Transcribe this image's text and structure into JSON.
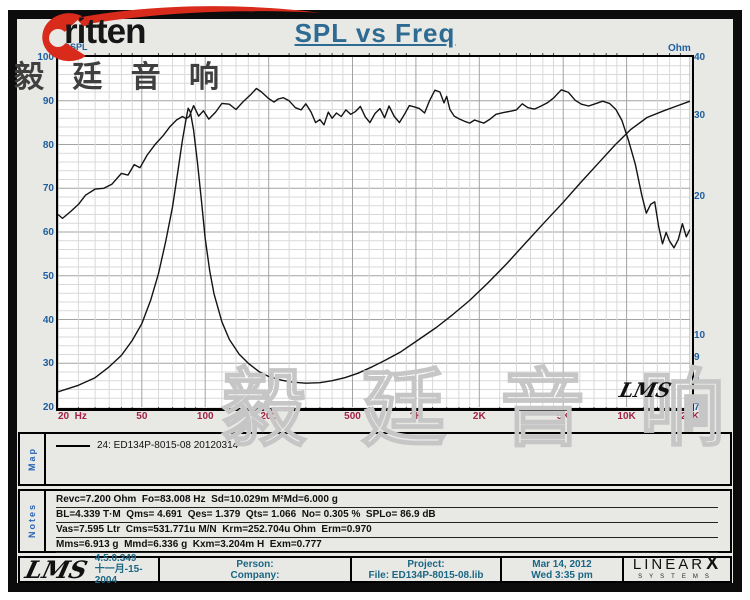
{
  "brand": {
    "logo_text": "ritten",
    "logo_color": "#d92b1c"
  },
  "title": "SPL vs Freq",
  "watermarks": {
    "top_left_cjk": "毅 廷 音 响",
    "bottom_cjk": "毅 廷 音 响",
    "lms_script": "LMS"
  },
  "map_panel": {
    "label": "Map",
    "legend": "24: ED134P-8015-08 20120314"
  },
  "notes_panel": {
    "label": "Notes",
    "lines": [
      "Revc=7.200 Ohm  Fo=83.008 Hz  Sd=10.029m M²Md=6.000 g",
      "BL=4.339 T·M  Qms= 4.691  Qes= 1.379  Qts= 1.066  No= 0.305 %  SPLo= 86.9 dB",
      "Vas=7.595 Ltr  Cms=531.771u M/N  Krm=252.704u Ohm  Erm=0.970",
      "Mms=6.913 g  Mmd=6.336 g  Kxm=3.204m H  Exm=0.777"
    ]
  },
  "footer": {
    "lms_logo": "LMS",
    "version": "4.5.0.349",
    "date_cn": "十一月-15-2004",
    "person_label": "Person:",
    "company_label": "Company:",
    "project_label": "Project:",
    "file_label": "File: ED134P-8015-08.lib",
    "date": "Mar 14, 2012",
    "time": "Wed  3:35 pm",
    "linearx_main": "LINEAR",
    "linearx_x": "X",
    "linearx_sub": "SYSTEMS"
  },
  "colors": {
    "title": "#2d6b93",
    "axis_left_labels": "#1f5f9e",
    "axis_bottom_labels": "#a32342",
    "panel_label_blue": "#2a64b4",
    "footer_text": "#1b6784",
    "curve": "#141414",
    "grid_minor": "#d9d9d9",
    "grid_major": "#a3a3a3",
    "logo_red": "#d92b1c",
    "page_gray": "#e8e8e5"
  },
  "chart_data": {
    "type": "line",
    "title": "SPL vs Freq",
    "x_axis": {
      "label": "Hz",
      "scale": "log",
      "min": 20,
      "max": 20000,
      "tick_labels": [
        "20  Hz",
        "50",
        "100",
        "200",
        "500",
        "1K",
        "2K",
        "5K",
        "10K",
        "20K"
      ],
      "tick_values": [
        20,
        50,
        100,
        200,
        500,
        1000,
        2000,
        5000,
        10000,
        20000
      ],
      "minor_gridlines": [
        25,
        30,
        35,
        40,
        45,
        60,
        70,
        80,
        90,
        120,
        140,
        160,
        180,
        250,
        300,
        350,
        400,
        450,
        600,
        700,
        800,
        900,
        1200,
        1400,
        1600,
        1800,
        2500,
        3000,
        3500,
        4000,
        4500,
        6000,
        7000,
        8000,
        9000,
        12000,
        14000,
        16000,
        18000
      ]
    },
    "y_left": {
      "label": "dBSPL",
      "scale": "linear",
      "min": 20,
      "max": 100,
      "major_step": 10,
      "minor_step": 2,
      "ticks": [
        100,
        90,
        80,
        70,
        60,
        50,
        40,
        30,
        20
      ]
    },
    "y_right": {
      "label": "Ohm",
      "scale": "log",
      "min": 7,
      "max": 40,
      "ticks": [
        40,
        30,
        20,
        10,
        9,
        8,
        7
      ]
    },
    "grid": true,
    "legend_position": "map-panel",
    "series": [
      {
        "name": "24: ED134P-8015-08 20120314 (SPL)",
        "axis": "left",
        "unit": "dBSPL",
        "points": [
          [
            20,
            64.0
          ],
          [
            21,
            63.1
          ],
          [
            23,
            64.7
          ],
          [
            25,
            66.3
          ],
          [
            27,
            68.4
          ],
          [
            30,
            69.8
          ],
          [
            33,
            70.0
          ],
          [
            36,
            70.9
          ],
          [
            40,
            73.4
          ],
          [
            43,
            73.0
          ],
          [
            46,
            75.4
          ],
          [
            49,
            74.7
          ],
          [
            53,
            77.6
          ],
          [
            58,
            80.1
          ],
          [
            63,
            82.0
          ],
          [
            68,
            84.1
          ],
          [
            73,
            85.6
          ],
          [
            78,
            86.4
          ],
          [
            81,
            85.9
          ],
          [
            84,
            86.4
          ],
          [
            88,
            88.9
          ],
          [
            93,
            86.5
          ],
          [
            98,
            87.7
          ],
          [
            104,
            85.8
          ],
          [
            112,
            87.4
          ],
          [
            120,
            89.4
          ],
          [
            130,
            89.2
          ],
          [
            140,
            88.0
          ],
          [
            152,
            89.9
          ],
          [
            165,
            91.5
          ],
          [
            175,
            92.8
          ],
          [
            185,
            92.0
          ],
          [
            200,
            90.5
          ],
          [
            212,
            89.7
          ],
          [
            222,
            90.4
          ],
          [
            235,
            90.7
          ],
          [
            250,
            90.0
          ],
          [
            268,
            88.4
          ],
          [
            285,
            87.9
          ],
          [
            300,
            89.3
          ],
          [
            318,
            87.4
          ],
          [
            334,
            85.0
          ],
          [
            350,
            85.7
          ],
          [
            366,
            84.5
          ],
          [
            384,
            87.4
          ],
          [
            400,
            86.0
          ],
          [
            420,
            87.2
          ],
          [
            442,
            86.4
          ],
          [
            465,
            87.9
          ],
          [
            490,
            86.9
          ],
          [
            515,
            87.5
          ],
          [
            545,
            88.7
          ],
          [
            575,
            86.3
          ],
          [
            605,
            85.0
          ],
          [
            640,
            87.1
          ],
          [
            675,
            88.2
          ],
          [
            710,
            86.1
          ],
          [
            745,
            88.8
          ],
          [
            790,
            86.4
          ],
          [
            835,
            85.0
          ],
          [
            880,
            86.8
          ],
          [
            930,
            88.9
          ],
          [
            985,
            88.6
          ],
          [
            1040,
            88.2
          ],
          [
            1100,
            87.2
          ],
          [
            1160,
            90.0
          ],
          [
            1230,
            92.4
          ],
          [
            1300,
            92.0
          ],
          [
            1360,
            89.5
          ],
          [
            1400,
            91.0
          ],
          [
            1450,
            88.0
          ],
          [
            1520,
            86.5
          ],
          [
            1600,
            85.9
          ],
          [
            1700,
            85.3
          ],
          [
            1800,
            84.9
          ],
          [
            1900,
            85.6
          ],
          [
            2000,
            85.2
          ],
          [
            2100,
            84.9
          ],
          [
            2250,
            85.8
          ],
          [
            2400,
            86.9
          ],
          [
            2600,
            87.3
          ],
          [
            2800,
            87.6
          ],
          [
            3000,
            87.9
          ],
          [
            3200,
            89.3
          ],
          [
            3400,
            88.4
          ],
          [
            3650,
            88.1
          ],
          [
            3900,
            88.7
          ],
          [
            4200,
            89.5
          ],
          [
            4500,
            90.6
          ],
          [
            4900,
            92.5
          ],
          [
            5300,
            91.9
          ],
          [
            5700,
            90.1
          ],
          [
            6100,
            89.2
          ],
          [
            6600,
            88.8
          ],
          [
            7100,
            89.3
          ],
          [
            7700,
            89.9
          ],
          [
            8300,
            89.4
          ],
          [
            8900,
            88.0
          ],
          [
            9500,
            85.5
          ],
          [
            10200,
            81.0
          ],
          [
            11000,
            75.5
          ],
          [
            11800,
            68.5
          ],
          [
            12400,
            64.3
          ],
          [
            13000,
            66.3
          ],
          [
            13600,
            66.9
          ],
          [
            14200,
            61.2
          ],
          [
            14800,
            57.3
          ],
          [
            15400,
            59.9
          ],
          [
            16000,
            57.9
          ],
          [
            16800,
            56.4
          ],
          [
            17600,
            58.3
          ],
          [
            18400,
            61.9
          ],
          [
            19200,
            58.9
          ],
          [
            20000,
            60.6
          ]
        ]
      },
      {
        "name": "Impedance",
        "axis": "right",
        "unit": "Ohm",
        "points": [
          [
            20,
            7.55
          ],
          [
            25,
            7.8
          ],
          [
            30,
            8.1
          ],
          [
            35,
            8.55
          ],
          [
            40,
            9.05
          ],
          [
            45,
            9.75
          ],
          [
            50,
            10.6
          ],
          [
            55,
            11.9
          ],
          [
            60,
            13.6
          ],
          [
            65,
            16.0
          ],
          [
            70,
            19.0
          ],
          [
            74,
            22.5
          ],
          [
            78,
            26.5
          ],
          [
            81,
            29.3
          ],
          [
            83,
            31.0
          ],
          [
            85,
            30.4
          ],
          [
            88,
            27.8
          ],
          [
            92,
            23.5
          ],
          [
            96,
            19.5
          ],
          [
            100,
            16.2
          ],
          [
            105,
            13.8
          ],
          [
            110,
            12.3
          ],
          [
            120,
            10.7
          ],
          [
            130,
            9.8
          ],
          [
            145,
            9.1
          ],
          [
            160,
            8.7
          ],
          [
            180,
            8.35
          ],
          [
            200,
            8.15
          ],
          [
            230,
            8.0
          ],
          [
            260,
            7.92
          ],
          [
            300,
            7.88
          ],
          [
            350,
            7.9
          ],
          [
            400,
            7.98
          ],
          [
            460,
            8.1
          ],
          [
            530,
            8.28
          ],
          [
            620,
            8.55
          ],
          [
            720,
            8.85
          ],
          [
            850,
            9.22
          ],
          [
            1000,
            9.7
          ],
          [
            1250,
            10.4
          ],
          [
            1500,
            11.1
          ],
          [
            1800,
            11.9
          ],
          [
            2200,
            13.0
          ],
          [
            2700,
            14.3
          ],
          [
            3300,
            15.8
          ],
          [
            4000,
            17.4
          ],
          [
            5000,
            19.4
          ],
          [
            6000,
            21.3
          ],
          [
            7300,
            23.5
          ],
          [
            8800,
            25.8
          ],
          [
            10500,
            27.9
          ],
          [
            12500,
            29.6
          ],
          [
            15000,
            30.6
          ],
          [
            17500,
            31.4
          ],
          [
            20000,
            32.1
          ]
        ]
      }
    ]
  }
}
